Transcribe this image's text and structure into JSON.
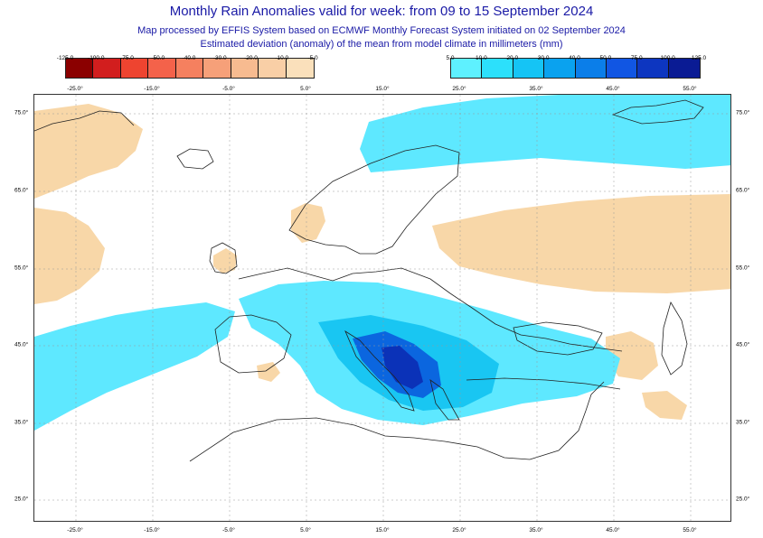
{
  "header": {
    "title": "Monthly Rain Anomalies valid for week: from 09 to 15 September 2024",
    "subtitle1": "Map processed by EFFIS System based on ECMWF Monthly Forecast System initiated on 02 September 2024",
    "subtitle2": "Estimated deviation (anomaly) of the mean from model climate in millimeters (mm)"
  },
  "colorbar_negative": {
    "labels": [
      "-125.0",
      "-100.0",
      "-75.0",
      "-50.0",
      "-40.0",
      "-30.0",
      "-20.0",
      "-10.0",
      "-5.0"
    ],
    "colors": [
      "#8b0000",
      "#d21e1e",
      "#ee4430",
      "#f4624a",
      "#f5805f",
      "#f6a079",
      "#f7bb90",
      "#f9cfa6",
      "#fae0bb"
    ]
  },
  "colorbar_positive": {
    "labels": [
      "5.0",
      "10.0",
      "20.0",
      "30.0",
      "40.0",
      "50.0",
      "75.0",
      "100.0",
      "125.0"
    ],
    "colors": [
      "#5ef1ff",
      "#2ce0fb",
      "#15c4f5",
      "#0aa2ef",
      "#0b7ee9",
      "#1156e3",
      "#0d36c0",
      "#0a1b94"
    ]
  },
  "map": {
    "lon_ticks": [
      "-25.0°",
      "-15.0°",
      "-5.0°",
      "5.0°",
      "15.0°",
      "25.0°",
      "35.0°",
      "45.0°",
      "55.0°"
    ],
    "lat_ticks": [
      "75.0°",
      "65.0°",
      "55.0°",
      "45.0°",
      "35.0°",
      "25.0°"
    ],
    "dry_color": "#f8d7a8",
    "wet_color_light": "#5ee8ff",
    "wet_color_mid": "#19c6f2",
    "wet_color_dark": "#0b66df",
    "wet_color_darkest": "#0b32b8"
  }
}
